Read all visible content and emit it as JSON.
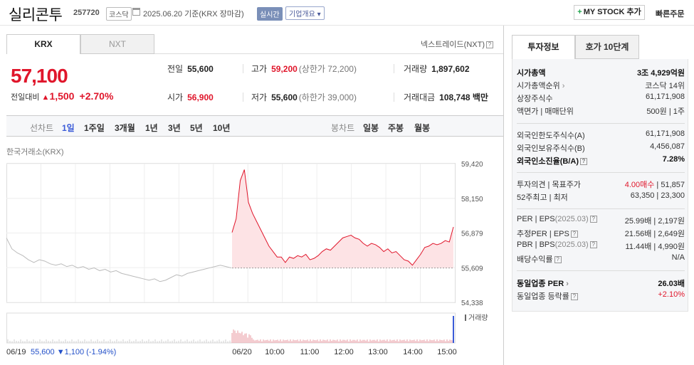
{
  "header": {
    "stock_name": "실리콘투",
    "stock_code": "257720",
    "market": "코스닥",
    "date_text": "2025.06.20 기준(KRX 장마감)",
    "realtime": "실시간",
    "company_info": "기업개요 ▾",
    "mystock_label": "MY STOCK 추가",
    "mystock_plus": "+",
    "quick_order": "빠른주문"
  },
  "market_tabs": {
    "krx": "KRX",
    "nxt": "NXT",
    "nxt_link": "넥스트레이드(NXT)"
  },
  "price": {
    "current": "57,100",
    "change_label": "전일대비",
    "change_arrow": "▲",
    "change_value": "1,500",
    "change_pct": "+2.70%"
  },
  "quote_info": {
    "prev_close": {
      "label": "전일",
      "value": "55,600"
    },
    "high": {
      "label": "고가",
      "value": "59,200",
      "sub": "(상한가 72,200)"
    },
    "volume": {
      "label": "거래량",
      "value": "1,897,602"
    },
    "open": {
      "label": "시가",
      "value": "56,900"
    },
    "low": {
      "label": "저가",
      "value": "55,600",
      "sub": "(하한가 39,000)"
    },
    "amount": {
      "label": "거래대금",
      "value": "108,748 백만"
    }
  },
  "period_bar": {
    "line_label": "선차트",
    "line_periods": [
      "1일",
      "1주일",
      "3개월",
      "1년",
      "3년",
      "5년",
      "10년"
    ],
    "candle_label": "봉차트",
    "candle_periods": [
      "일봉",
      "주봉",
      "월봉"
    ]
  },
  "exchange_label": "한국거래소(KRX)",
  "chart_data": {
    "type": "line",
    "y_ticks": [
      "59,420",
      "58,150",
      "56,879",
      "55,609",
      "54,338"
    ],
    "ylim": [
      54338,
      59420
    ],
    "x_ticks": [
      "06/20",
      "10:00",
      "11:00",
      "12:00",
      "13:00",
      "14:00",
      "15:00"
    ],
    "prev_day_label": "06/19",
    "prev_day_close": "55,600",
    "prev_day_change": "▼1,100",
    "prev_day_pct": "(-1.94%)",
    "volume_label": "거래량",
    "reference_line": 55600,
    "colors": {
      "up": "#e0162b",
      "prev": "#bbbbbb",
      "fill": "#fde3e5"
    },
    "series": [
      {
        "values_prev_day": [
          56700,
          56300,
          56150,
          56050,
          55900,
          55800,
          55900,
          55850,
          55750,
          55700,
          55750,
          55650,
          55700,
          55600,
          55650,
          55550,
          55600,
          55500,
          55550,
          55450,
          55500,
          55400,
          55350,
          55300,
          55250,
          55200,
          55150,
          55200,
          55100,
          55150,
          55250,
          55350,
          55300,
          55400,
          55450,
          55500,
          55550,
          55600,
          55650,
          55700,
          55650,
          55600
        ]
      },
      {
        "values_today": [
          56900,
          57400,
          58800,
          59200,
          58000,
          57600,
          57300,
          57000,
          56700,
          56400,
          56200,
          56000,
          56000,
          55800,
          56000,
          55950,
          56050,
          56000,
          56100,
          55900,
          55950,
          56050,
          56200,
          56300,
          56250,
          56400,
          56550,
          56700,
          56750,
          56800,
          56700,
          56650,
          56500,
          56400,
          56500,
          56450,
          56350,
          56200,
          56300,
          56150,
          56200,
          56050,
          55900,
          55850,
          55700,
          55900,
          56100,
          56350,
          56400,
          56500,
          56450,
          56500,
          56600,
          56550,
          57100
        ]
      }
    ]
  },
  "invest_tabs": {
    "active": "투자정보",
    "other": "호가 10단계"
  },
  "invest_info": {
    "market_cap": {
      "label": "시가총액",
      "value": "3조 4,929억원"
    },
    "market_cap_rank": {
      "label": "시가총액순위",
      "value": "코스닥 14위"
    },
    "shares_listed": {
      "label": "상장주식수",
      "value": "61,171,908"
    },
    "par_value": {
      "label": "액면가 | 매매단위",
      "value": "500원 | 1주"
    },
    "foreign_limit": {
      "label": "외국인한도주식수(A)",
      "value": "61,171,908"
    },
    "foreign_hold": {
      "label": "외국인보유주식수(B)",
      "value": "4,456,087"
    },
    "foreign_ratio": {
      "label": "외국인소진율(B/A)",
      "value": "7.28%"
    },
    "opinion": {
      "label": "투자의견 | 목표주가",
      "value_red": "4.00매수",
      "value": "51,857"
    },
    "week52": {
      "label": "52주최고 | 최저",
      "value": "63,350 | 23,300"
    },
    "per": {
      "label": "PER | EPS",
      "sub": "(2025.03)",
      "value": "25.99배 | 2,197원"
    },
    "est_per": {
      "label": "추정PER | EPS",
      "value": "21.56배 | 2,649원"
    },
    "pbr": {
      "label": "PBR | BPS",
      "sub": "(2025.03)",
      "value": "11.44배 | 4,990원"
    },
    "dividend": {
      "label": "배당수익률",
      "value": "N/A"
    },
    "industry_per": {
      "label": "동일업종 PER",
      "value": "26.03배"
    },
    "industry_change": {
      "label": "동일업종 등락률",
      "value": "+2.10%"
    }
  }
}
